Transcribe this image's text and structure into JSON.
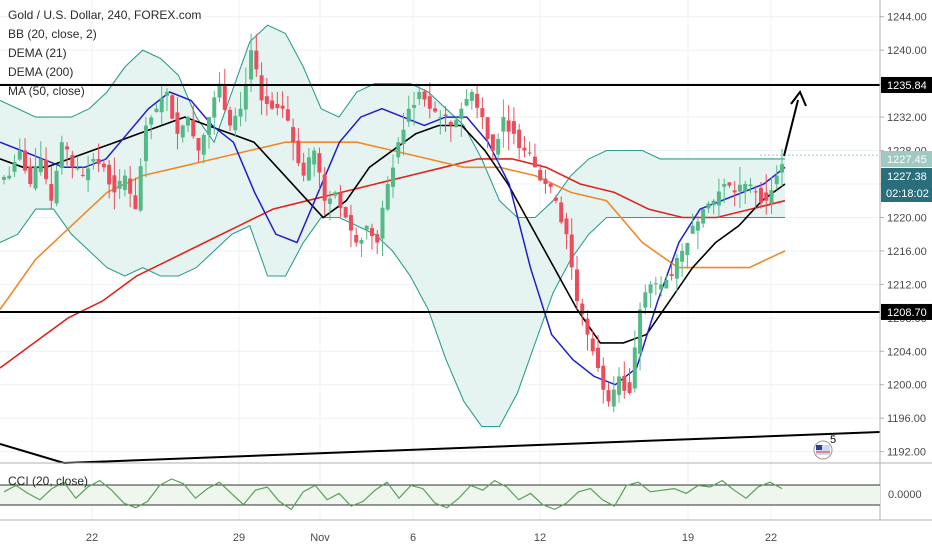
{
  "header": {
    "title": "Gold / U.S. Dollar, 240, FOREX.com",
    "indicators": [
      "BB (20, close, 2)",
      "DEMA (21)",
      "DEMA (200)",
      "MA (50, close)"
    ]
  },
  "cci": {
    "label": "CCI (20, close)",
    "axis_value": "0.0000"
  },
  "price_tags": {
    "level_upper": "1235.84",
    "level_lower": "1208.70",
    "last": "1227.45",
    "dema_value": "1227.38",
    "countdown": "02:18:02"
  },
  "badge": {
    "count": "5"
  },
  "colors": {
    "up": "#53b987",
    "down": "#eb4d5c",
    "bb": "#2e9e8f",
    "bb_fill": "#e6f4f1",
    "dema21": "#1f1fcc",
    "ma50": "#000000",
    "ma_orange": "#f0892a",
    "dema200": "#e0231d",
    "level_line": "#000000",
    "last_tag": "#9fc9c1",
    "dema_tag": "#2a6e7c"
  },
  "chart_data": {
    "type": "candlestick",
    "symbol": "Gold / U.S. Dollar",
    "interval": "240",
    "source": "FOREX.com",
    "y_range": [
      1191,
      1246
    ],
    "y_ticks": [
      "1244.00",
      "1240.00",
      "1236.00",
      "1232.00",
      "1228.00",
      "1224.00",
      "1220.00",
      "1216.00",
      "1212.00",
      "1208.00",
      "1204.00",
      "1200.00",
      "1196.00",
      "1192.00"
    ],
    "x_ticks": [
      "22",
      "29",
      "Nov",
      "6",
      "12",
      "19",
      "22"
    ],
    "close_path": [
      1225,
      1228,
      1224,
      1227,
      1222,
      1229,
      1226,
      1225,
      1227,
      1226,
      1223,
      1225,
      1221,
      1231,
      1233,
      1235,
      1230,
      1232,
      1228,
      1232,
      1236,
      1231,
      1233,
      1240,
      1234,
      1233,
      1233,
      1229,
      1225,
      1228,
      1222,
      1223,
      1220,
      1217,
      1219,
      1217,
      1224,
      1229,
      1233,
      1235,
      1233,
      1232,
      1231,
      1233,
      1235,
      1232,
      1228,
      1232,
      1230,
      1228,
      1226,
      1224,
      1222,
      1218,
      1210,
      1206,
      1202,
      1198,
      1201,
      1199,
      1209,
      1212,
      1212,
      1213,
      1216,
      1219,
      1221,
      1222,
      1224,
      1223,
      1224,
      1223,
      1222,
      1225,
      1227
    ],
    "bb_upper": [
      1234,
      1233,
      1232,
      1232,
      1232,
      1233,
      1235,
      1238,
      1240,
      1239,
      1237,
      1232,
      1229,
      1235,
      1241,
      1243,
      1242,
      1238,
      1233,
      1232,
      1235,
      1236,
      1236,
      1236,
      1235,
      1233,
      1231,
      1227,
      1222,
      1220,
      1220,
      1222,
      1225,
      1227,
      1228,
      1228,
      1228,
      1227,
      1227,
      1227,
      1227,
      1227,
      1227,
      1227,
      1227
    ],
    "bb_lower": [
      1217,
      1218,
      1221,
      1221,
      1218,
      1216,
      1214,
      1213,
      1214,
      1213,
      1213,
      1214,
      1216,
      1218,
      1219,
      1213,
      1213,
      1217,
      1220,
      1220,
      1219,
      1218,
      1216,
      1213,
      1209,
      1203,
      1198,
      1195,
      1195,
      1199,
      1205,
      1211,
      1215,
      1218,
      1220,
      1220,
      1220,
      1220,
      1220,
      1220,
      1220,
      1220,
      1220,
      1220,
      1220
    ],
    "dema21": [
      1229,
      1228,
      1227,
      1226,
      1226,
      1227,
      1230,
      1233,
      1235,
      1234,
      1231,
      1229,
      1223,
      1218,
      1217,
      1223,
      1229,
      1232,
      1233,
      1232,
      1231,
      1232,
      1232,
      1229,
      1224,
      1214,
      1206,
      1203,
      1201,
      1200,
      1202,
      1210,
      1217,
      1221,
      1222,
      1223,
      1224,
      1226
    ],
    "ma50": [
      1227,
      1226,
      1226,
      1227,
      1228,
      1229,
      1230,
      1231,
      1232,
      1231,
      1230,
      1229,
      1226,
      1223,
      1220,
      1222,
      1226,
      1228,
      1230,
      1231,
      1231,
      1228,
      1224,
      1219,
      1214,
      1209,
      1205,
      1205,
      1206,
      1210,
      1214,
      1217,
      1219,
      1222,
      1224
    ],
    "ma_orange": [
      1209,
      1215,
      1219,
      1223,
      1225,
      1226,
      1227,
      1228,
      1229,
      1229,
      1229,
      1228,
      1227,
      1226,
      1226,
      1225,
      1223,
      1222,
      1217,
      1214,
      1214,
      1214,
      1216
    ],
    "dema200": [
      1202,
      1205,
      1208,
      1210,
      1213,
      1215,
      1217,
      1219,
      1221,
      1222,
      1223,
      1224,
      1225,
      1226,
      1227,
      1227,
      1226,
      1224,
      1223,
      1221,
      1220,
      1220,
      1221,
      1222
    ],
    "levels": [
      1235.84,
      1208.7
    ]
  }
}
